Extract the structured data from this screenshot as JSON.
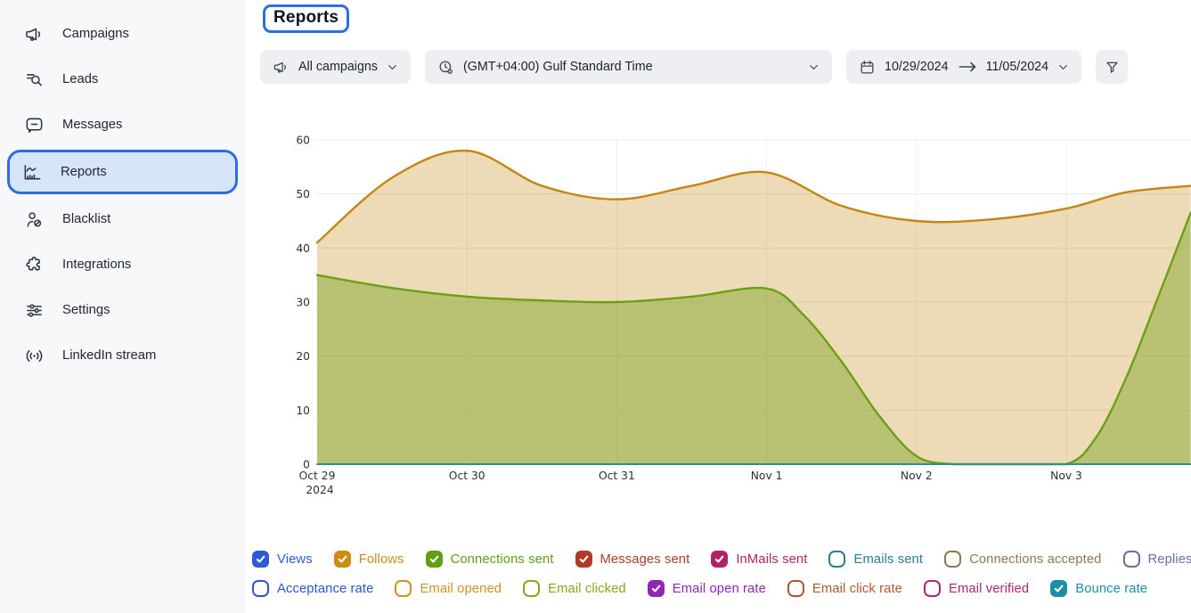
{
  "header": {
    "title": "Reports"
  },
  "sidebar": {
    "items": [
      {
        "label": "Campaigns",
        "icon": "megaphone",
        "selected": false
      },
      {
        "label": "Leads",
        "icon": "list-search",
        "selected": false
      },
      {
        "label": "Messages",
        "icon": "chat-bubble",
        "selected": false
      },
      {
        "label": "Reports",
        "icon": "bar-chart",
        "selected": true
      },
      {
        "label": "Blacklist",
        "icon": "user-blocked",
        "selected": false
      },
      {
        "label": "Integrations",
        "icon": "puzzle",
        "selected": false
      },
      {
        "label": "Settings",
        "icon": "sliders",
        "selected": false
      },
      {
        "label": "LinkedIn stream",
        "icon": "broadcast",
        "selected": false
      }
    ]
  },
  "filters": {
    "campaign": {
      "value": "All campaigns",
      "icon": "megaphone"
    },
    "timezone": {
      "value": "(GMT+04:00) Gulf Standard Time",
      "icon": "clock-settings"
    },
    "date_range": {
      "start": "10/29/2024",
      "end": "11/05/2024",
      "icon": "calendar"
    },
    "filter_button": {
      "icon": "funnel"
    }
  },
  "chart_data": {
    "type": "area",
    "title": "",
    "xlabel": "",
    "ylabel": "",
    "x_range": [
      0,
      5.83
    ],
    "ylim": [
      0,
      60
    ],
    "y_ticks": [
      0,
      10,
      20,
      30,
      40,
      50,
      60
    ],
    "grid": true,
    "x_tick_labels": [
      {
        "x": 0,
        "label": "Oct 29",
        "sub": "2024"
      },
      {
        "x": 1,
        "label": "Oct 30"
      },
      {
        "x": 2,
        "label": "Oct 31"
      },
      {
        "x": 3,
        "label": "Nov 1"
      },
      {
        "x": 4,
        "label": "Nov 2"
      },
      {
        "x": 5,
        "label": "Nov 3"
      }
    ],
    "series": [
      {
        "name": "Follows",
        "line_color": "#c5860f",
        "fill_color": "rgba(197,134,15,0.30)",
        "points": [
          [
            0,
            41
          ],
          [
            0.5,
            53
          ],
          [
            1,
            58
          ],
          [
            1.5,
            51.5
          ],
          [
            2,
            49
          ],
          [
            2.5,
            51.5
          ],
          [
            3,
            54
          ],
          [
            3.5,
            47.8
          ],
          [
            4,
            45
          ],
          [
            4.5,
            45.3
          ],
          [
            5,
            47.3
          ],
          [
            5.4,
            50.3
          ],
          [
            5.83,
            51.5
          ]
        ]
      },
      {
        "name": "Connections sent",
        "line_color": "#6ba015",
        "fill_color": "rgba(113,162,20,0.42)",
        "points": [
          [
            0,
            35
          ],
          [
            0.5,
            32.6
          ],
          [
            1,
            31
          ],
          [
            1.5,
            30.3
          ],
          [
            2,
            30
          ],
          [
            2.5,
            31
          ],
          [
            3,
            32.5
          ],
          [
            3.25,
            27.5
          ],
          [
            3.5,
            19
          ],
          [
            3.75,
            9
          ],
          [
            4,
            1.5
          ],
          [
            4.25,
            0
          ],
          [
            4.6,
            0
          ],
          [
            5,
            0
          ],
          [
            5.2,
            5
          ],
          [
            5.4,
            16
          ],
          [
            5.6,
            30
          ],
          [
            5.83,
            46.5
          ]
        ]
      },
      {
        "name": "Zero baseline (Views, Messages sent, InMails sent, Email open rate, Bounce rate)",
        "line_color": "#2c8fa0",
        "fill_color": "none",
        "points": [
          [
            0,
            0
          ],
          [
            5.83,
            0
          ]
        ]
      }
    ]
  },
  "legend": {
    "rows": [
      [
        {
          "label": "Views",
          "color": "#2d5bd7",
          "checked": true
        },
        {
          "label": "Follows",
          "color": "#cc8d15",
          "checked": true
        },
        {
          "label": "Connections sent",
          "color": "#5fa013",
          "checked": true
        },
        {
          "label": "Messages sent",
          "color": "#b13a27",
          "checked": true
        },
        {
          "label": "InMails sent",
          "color": "#b02465",
          "checked": true
        },
        {
          "label": "Emails sent",
          "color": "#2a7d92",
          "checked": false
        },
        {
          "label": "Connections accepted",
          "color": "#8d7855",
          "checked": false
        },
        {
          "label": "Replies received",
          "color": "#64739b",
          "checked": false
        }
      ],
      [
        {
          "label": "Acceptance rate",
          "color": "#2d55d0",
          "checked": false
        },
        {
          "label": "Email opened",
          "color": "#c8961f",
          "checked": false
        },
        {
          "label": "Email clicked",
          "color": "#8aa51d",
          "checked": false
        },
        {
          "label": "Email open rate",
          "color": "#9027b4",
          "checked": true
        },
        {
          "label": "Email click rate",
          "color": "#b35730",
          "checked": false
        },
        {
          "label": "Email verified",
          "color": "#a92a72",
          "checked": false
        },
        {
          "label": "Bounce rate",
          "color": "#1d8ea6",
          "checked": true
        }
      ]
    ]
  }
}
